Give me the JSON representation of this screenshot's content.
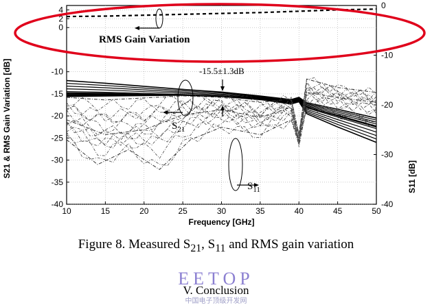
{
  "chart_data": {
    "type": "line",
    "title": "",
    "xlabel": "Frequency [GHz]",
    "ylabel_left": "S21 & RMS Gain Variation [dB]",
    "ylabel_right": "S11 [dB]",
    "xlim": [
      10,
      50
    ],
    "ylim_left": [
      -40,
      5
    ],
    "ylim_right": [
      -40,
      0
    ],
    "x_ticks": [
      "10",
      "15",
      "20",
      "25",
      "30",
      "35",
      "40",
      "45",
      "50"
    ],
    "y_ticks_left": [
      "4",
      "2",
      "0",
      "-10",
      "-15",
      "-20",
      "-25",
      "-30",
      "-35",
      "-40"
    ],
    "y_ticks_right": [
      "0",
      "-10",
      "-20",
      "-30",
      "-40"
    ],
    "grid": true,
    "annotations": {
      "rms": "RMS Gain Variation",
      "s21": "S21",
      "s11": "S11",
      "range": "-15.5±1.3dB"
    },
    "series": [
      {
        "axis": "left",
        "x": [
          10,
          15,
          20,
          25,
          30,
          35,
          40,
          45,
          50
        ],
        "y": [
          2.5,
          2.6,
          2.8,
          3.0,
          3.2,
          3.4,
          3.7,
          4.0,
          4.2
        ]
      },
      {
        "axis": "left",
        "x": [
          10,
          15,
          20,
          25,
          30,
          35,
          39,
          40,
          41,
          45,
          50
        ],
        "y": [
          -12.0,
          -12.6,
          -13.3,
          -14.0,
          -14.6,
          -15.5,
          -16.3,
          -15.8,
          -17.0,
          -18.5,
          -20.5
        ]
      },
      {
        "axis": "left",
        "x": [
          10,
          15,
          20,
          25,
          30,
          35,
          39,
          40,
          41,
          45,
          50
        ],
        "y": [
          -14.8,
          -14.9,
          -15.1,
          -15.3,
          -15.6,
          -16.1,
          -16.7,
          -16.2,
          -18.0,
          -20.0,
          -22.5
        ]
      },
      {
        "axis": "left",
        "x": [
          10,
          15,
          20,
          25,
          30,
          35,
          39,
          40,
          41,
          45,
          50
        ],
        "y": [
          -15.6,
          -15.5,
          -15.4,
          -15.3,
          -15.6,
          -16.3,
          -17.3,
          -16.8,
          -19.5,
          -22.5,
          -26.0
        ]
      },
      {
        "axis": "right",
        "x": [
          10,
          15,
          20,
          25,
          30,
          35,
          39,
          40,
          41,
          45,
          50
        ],
        "y": [
          -18.5,
          -19,
          -18.6,
          -18.2,
          -18.5,
          -19.5,
          -18.8,
          -26,
          -14.8,
          -16.5,
          -17.5
        ]
      },
      {
        "axis": "right",
        "x": [
          10,
          15,
          20,
          25,
          30,
          35,
          39,
          40,
          41,
          45,
          50
        ],
        "y": [
          -23,
          -26,
          -25,
          -22,
          -21,
          -22.5,
          -20.5,
          -27,
          -17.5,
          -18.5,
          -19.5
        ]
      },
      {
        "axis": "right",
        "x": [
          10,
          14,
          18,
          22,
          26,
          30,
          35,
          39,
          40,
          41,
          45,
          50
        ],
        "y": [
          -27,
          -32,
          -29,
          -33,
          -27,
          -24.5,
          -26,
          -23,
          -28,
          -20.5,
          -22,
          -23.5
        ]
      }
    ]
  },
  "caption": {
    "prefix": "Figure 8. Measured S",
    "s21_sub": "21",
    "mid": ", S",
    "s11_sub": "11",
    "suffix": " and RMS gain variation"
  },
  "watermark": {
    "text": "EETOP",
    "sub": "中国电子顶级开发网"
  },
  "section": {
    "text": "V. Conclusion"
  }
}
